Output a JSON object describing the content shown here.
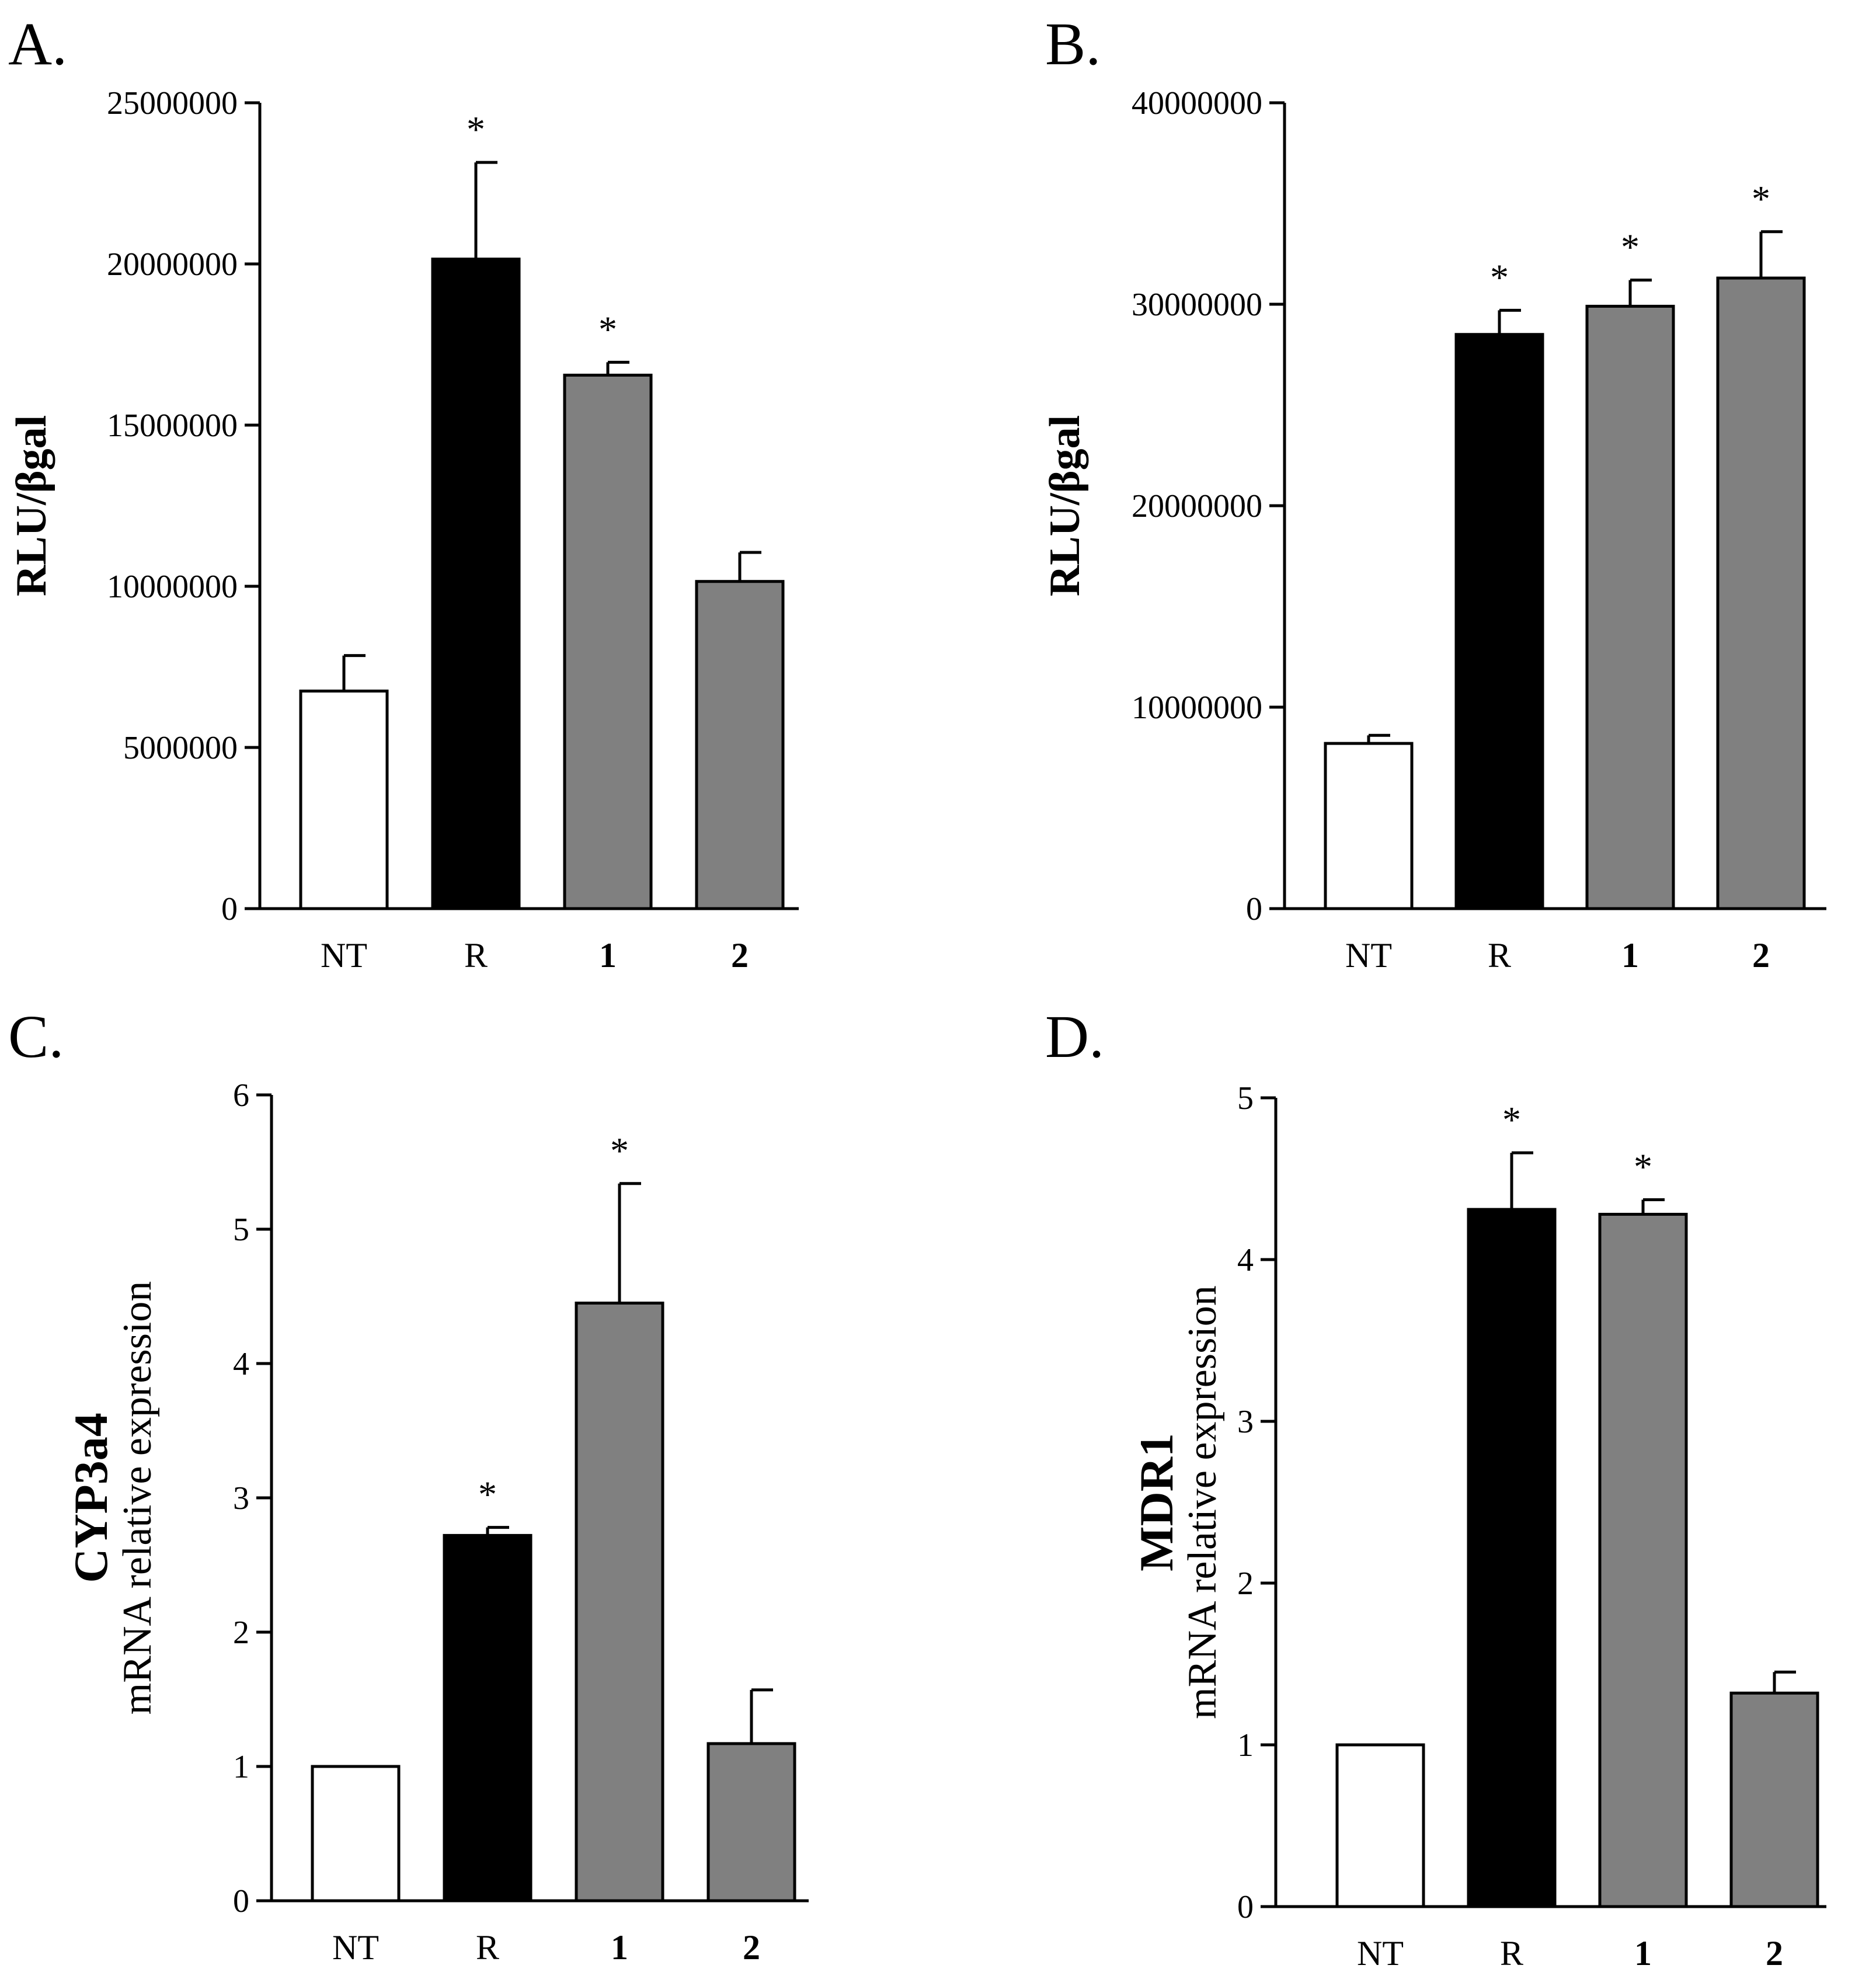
{
  "figure": {
    "background": "#ffffff",
    "colors": {
      "NT": "#ffffff",
      "R": "#000000",
      "1": "#808080",
      "2": "#808080",
      "axis": "#000000"
    }
  },
  "chart_data": [
    {
      "panel_label": "A.",
      "type": "bar",
      "title": "",
      "xlabel": "",
      "ylabel": "RLU/βgal",
      "categories": [
        "NT",
        "R",
        "1",
        "2"
      ],
      "bold_categories": [
        "1",
        "2"
      ],
      "values": [
        6750000,
        20150000,
        16550000,
        10150000
      ],
      "errors": [
        1100000,
        3000000,
        400000,
        900000
      ],
      "significance": [
        "",
        "*",
        "*",
        ""
      ],
      "ylim": [
        0,
        25000000
      ],
      "yticks": [
        0,
        5000000,
        10000000,
        15000000,
        20000000,
        25000000
      ],
      "ytick_labels": [
        "0",
        "5000000",
        "10000000",
        "15000000",
        "20000000",
        "25000000"
      ],
      "grid": false,
      "legend": "none"
    },
    {
      "panel_label": "B.",
      "type": "bar",
      "title": "",
      "xlabel": "",
      "ylabel": "RLU/βgal",
      "categories": [
        "NT",
        "R",
        "1",
        "2"
      ],
      "bold_categories": [
        "1",
        "2"
      ],
      "values": [
        8200000,
        28500000,
        29900000,
        31300000
      ],
      "errors": [
        400000,
        1200000,
        1300000,
        2300000
      ],
      "significance": [
        "",
        "*",
        "*",
        "*"
      ],
      "ylim": [
        0,
        40000000
      ],
      "yticks": [
        0,
        10000000,
        20000000,
        30000000,
        40000000
      ],
      "ytick_labels": [
        "0",
        "10000000",
        "20000000",
        "30000000",
        "40000000"
      ],
      "grid": false,
      "legend": "none"
    },
    {
      "panel_label": "C.",
      "type": "bar",
      "title": "",
      "xlabel": "",
      "ylabel": "CYP3a4",
      "ylabel_sub": "mRNA relative expression",
      "categories": [
        "NT",
        "R",
        "1",
        "2"
      ],
      "bold_categories": [
        "1",
        "2"
      ],
      "values": [
        1.0,
        2.72,
        4.45,
        1.17
      ],
      "errors": [
        0,
        0.06,
        0.89,
        0.4
      ],
      "significance": [
        "",
        "*",
        "*",
        ""
      ],
      "ylim": [
        0,
        6
      ],
      "yticks": [
        0,
        1,
        2,
        3,
        4,
        5,
        6
      ],
      "ytick_labels": [
        "0",
        "1",
        "2",
        "3",
        "4",
        "5",
        "6"
      ],
      "grid": false,
      "legend": "none"
    },
    {
      "panel_label": "D.",
      "type": "bar",
      "title": "",
      "xlabel": "",
      "ylabel": "MDR1",
      "ylabel_sub": "mRNA relative expression",
      "categories": [
        "NT",
        "R",
        "1",
        "2"
      ],
      "bold_categories": [
        "1",
        "2"
      ],
      "values": [
        1.0,
        4.31,
        4.28,
        1.32
      ],
      "errors": [
        0,
        0.35,
        0.09,
        0.13
      ],
      "significance": [
        "",
        "*",
        "*",
        ""
      ],
      "ylim": [
        0,
        5
      ],
      "yticks": [
        0,
        1,
        2,
        3,
        4,
        5
      ],
      "ytick_labels": [
        "0",
        "1",
        "2",
        "3",
        "4",
        "5"
      ],
      "grid": false,
      "legend": "none"
    }
  ]
}
